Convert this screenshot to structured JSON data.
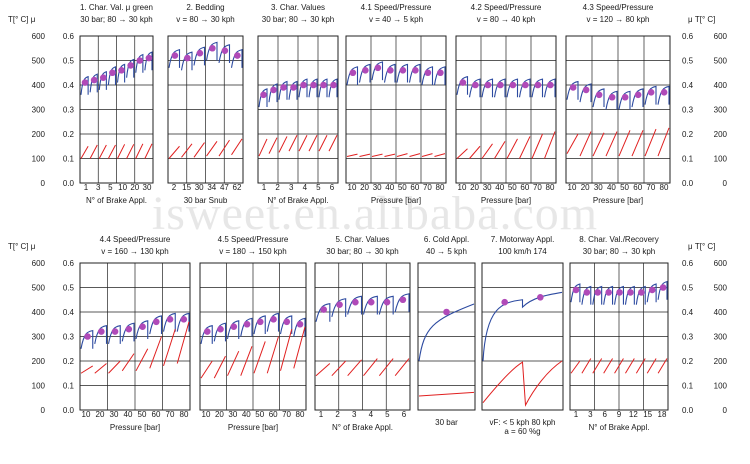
{
  "watermark": "isweet.en.alibaba.com",
  "axes": {
    "left_label": "T[° C] μ",
    "right_label": "μ T[° C]",
    "temp_ticks": [
      "600",
      "500",
      "400",
      "300",
      "200",
      "100",
      "0"
    ],
    "mu_ticks": [
      "0.6",
      "0.5",
      "0.4",
      "0.3",
      "0.2",
      "0.1",
      "0.0"
    ]
  },
  "colors": {
    "mu": "#2c4aa0",
    "temp": "#e02020",
    "marker": "#b04ab8",
    "grid": "#222222"
  },
  "chart_data": [
    {
      "id": "p1",
      "title": "1. Char. Val. μ green",
      "subtitle": "30 bar; 80 → 30 kph",
      "ticks": [
        "1",
        "3",
        "5",
        "10",
        "20",
        "30"
      ],
      "xlabel": "N°  of Brake Appl.",
      "kind": "cycles",
      "n": 8,
      "mu": [
        0.41,
        0.42,
        0.43,
        0.45,
        0.46,
        0.48,
        0.5,
        0.51
      ],
      "temp_peak": [
        150,
        155,
        155,
        155,
        158,
        158,
        160,
        160
      ],
      "temp_base": [
        100,
        100,
        100,
        100,
        100,
        100,
        100,
        100
      ]
    },
    {
      "id": "p2",
      "title": "2. Bedding",
      "subtitle": "v = 80 → 30 kph",
      "ticks": [
        "2",
        "15",
        "30",
        "34",
        "47",
        "62"
      ],
      "xlabel": "30 bar Snub",
      "kind": "cycles",
      "n": 6,
      "mu": [
        0.52,
        0.51,
        0.53,
        0.55,
        0.54,
        0.52
      ],
      "temp_peak": [
        150,
        160,
        165,
        170,
        175,
        180
      ],
      "temp_base": [
        100,
        105,
        105,
        110,
        110,
        115
      ]
    },
    {
      "id": "p3",
      "title": "3. Char. Values",
      "subtitle": "30 bar; 80 → 30 kph",
      "ticks": [
        "1",
        "2",
        "3",
        "4",
        "5",
        "6"
      ],
      "xlabel": "N°  of Brake Appl.",
      "kind": "cycles",
      "n": 8,
      "mu": [
        0.36,
        0.38,
        0.39,
        0.39,
        0.4,
        0.4,
        0.4,
        0.4
      ],
      "temp_peak": [
        180,
        185,
        190,
        195,
        195,
        195,
        195,
        195
      ],
      "temp_base": [
        110,
        120,
        125,
        130,
        130,
        130,
        130,
        130
      ]
    },
    {
      "id": "p4",
      "title": "4.1 Speed/Pressure",
      "subtitle": "v = 40 → 5 kph",
      "ticks": [
        "10",
        "20",
        "30",
        "40",
        "50",
        "60",
        "70",
        "80"
      ],
      "xlabel": "Pressure [bar]",
      "kind": "cycles",
      "n": 8,
      "mu": [
        0.45,
        0.46,
        0.47,
        0.46,
        0.46,
        0.46,
        0.45,
        0.45
      ],
      "temp_peak": [
        118,
        118,
        118,
        118,
        120,
        120,
        120,
        120
      ],
      "temp_base": [
        108,
        108,
        108,
        108,
        108,
        108,
        108,
        108
      ]
    },
    {
      "id": "p5",
      "title": "4.2 Speed/Pressure",
      "subtitle": "v = 80 → 40 kph",
      "ticks": [
        "10",
        "20",
        "30",
        "40",
        "50",
        "60",
        "70",
        "80"
      ],
      "xlabel": "Pressure [bar]",
      "kind": "cycles",
      "n": 8,
      "mu": [
        0.41,
        0.4,
        0.4,
        0.4,
        0.4,
        0.4,
        0.4,
        0.4
      ],
      "temp_peak": [
        140,
        150,
        160,
        170,
        180,
        190,
        200,
        210
      ],
      "temp_base": [
        100,
        100,
        100,
        100,
        100,
        100,
        100,
        100
      ]
    },
    {
      "id": "p6",
      "title": "4.3 Speed/Pressure",
      "subtitle": "v = 120 → 80 kph",
      "ticks": [
        "10",
        "20",
        "30",
        "40",
        "50",
        "60",
        "70",
        "80"
      ],
      "xlabel": "Pressure [bar]",
      "kind": "cycles",
      "n": 8,
      "mu": [
        0.39,
        0.38,
        0.36,
        0.35,
        0.35,
        0.36,
        0.37,
        0.37
      ],
      "temp_peak": [
        200,
        210,
        205,
        210,
        215,
        215,
        220,
        225
      ],
      "temp_base": [
        120,
        110,
        110,
        110,
        110,
        110,
        110,
        110
      ]
    },
    {
      "id": "p7",
      "title": "4.4 Speed/Pressure",
      "subtitle": "v = 160 → 130 kph",
      "ticks": [
        "10",
        "20",
        "30",
        "40",
        "50",
        "60",
        "70",
        "80"
      ],
      "xlabel": "Pressure [bar]",
      "kind": "cycles",
      "n": 8,
      "mu": [
        0.3,
        0.32,
        0.32,
        0.33,
        0.34,
        0.36,
        0.37,
        0.37
      ],
      "temp_peak": [
        180,
        190,
        200,
        230,
        250,
        300,
        330,
        360
      ],
      "temp_base": [
        150,
        150,
        150,
        160,
        160,
        170,
        180,
        190
      ]
    },
    {
      "id": "p8",
      "title": "4.5 Speed/Pressure",
      "subtitle": "v = 180 → 150 kph",
      "ticks": [
        "10",
        "20",
        "30",
        "40",
        "50",
        "60",
        "70",
        "80"
      ],
      "xlabel": "Pressure [bar]",
      "kind": "cycles",
      "n": 8,
      "mu": [
        0.32,
        0.33,
        0.34,
        0.35,
        0.36,
        0.37,
        0.36,
        0.35
      ],
      "temp_peak": [
        200,
        220,
        240,
        260,
        280,
        300,
        330,
        340
      ],
      "temp_base": [
        130,
        130,
        140,
        140,
        150,
        150,
        160,
        170
      ]
    },
    {
      "id": "p9",
      "title": "5. Char. Values",
      "subtitle": "30 bar; 80 → 30 kph",
      "ticks": [
        "1",
        "2",
        "3",
        "4",
        "5",
        "6"
      ],
      "xlabel": "N°  of Brake Appl.",
      "kind": "cycles",
      "n": 6,
      "mu": [
        0.41,
        0.43,
        0.44,
        0.44,
        0.44,
        0.45
      ],
      "temp_peak": [
        190,
        200,
        205,
        210,
        210,
        210
      ],
      "temp_base": [
        140,
        140,
        140,
        140,
        140,
        140
      ]
    },
    {
      "id": "p10",
      "title": "6. Cold Appl.",
      "subtitle": "40 → 5 kph",
      "ticks": [],
      "xlabel": "30 bar",
      "kind": "cold",
      "marker_mu": 0.4,
      "temp_level": 52
    },
    {
      "id": "p11",
      "title": "7. Motorway Appl.",
      "subtitle": "100  km/h   174",
      "ticks": [],
      "xlabel": "vF: < 5 kph 80 kph",
      "xlabel2": "a = 60 %g",
      "kind": "motorway",
      "marker_mu": [
        0.44,
        0.46
      ]
    },
    {
      "id": "p12",
      "title": "8. Char. Val./Recovery",
      "subtitle": "30 bar; 80 → 30 kph",
      "ticks": [
        "1",
        "3",
        "6",
        "9",
        "12",
        "15",
        "18"
      ],
      "xlabel": "N°  of Brake Appl.",
      "kind": "cycles",
      "n": 9,
      "mu": [
        0.49,
        0.48,
        0.48,
        0.48,
        0.48,
        0.48,
        0.48,
        0.49,
        0.5
      ],
      "temp_peak": [
        200,
        210,
        210,
        210,
        210,
        210,
        210,
        210,
        210
      ],
      "temp_base": [
        150,
        150,
        150,
        150,
        150,
        150,
        150,
        150,
        150
      ]
    }
  ]
}
